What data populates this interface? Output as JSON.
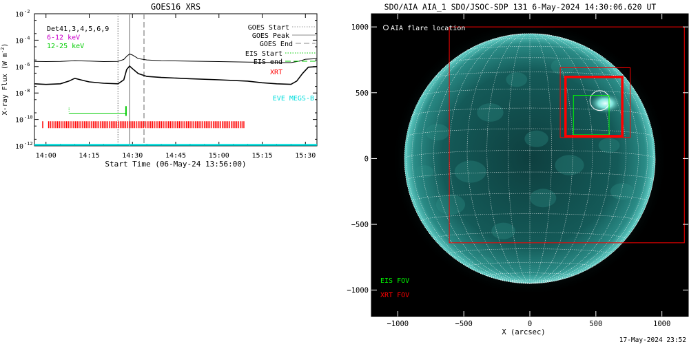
{
  "footer_timestamp": "17-May-2024 23:52",
  "chart_data": [
    {
      "type": "line",
      "title": "GOES16 XRS",
      "ylabel": "X-ray Flux (W m^-2)",
      "xlabel": "Start Time (06-May-24 13:56:00)",
      "y_scale": "log",
      "ylim": [
        1e-12,
        0.01
      ],
      "xlim": [
        "13:56",
        "15:34"
      ],
      "x_ticks": [
        "14:00",
        "14:15",
        "14:30",
        "14:45",
        "15:00",
        "15:15",
        "15:30"
      ],
      "y_ticks": [
        {
          "value": 1e-12,
          "label": "10",
          "exp": "-12"
        },
        {
          "value": 1e-10,
          "label": "10",
          "exp": "-10"
        },
        {
          "value": 1e-08,
          "label": "10",
          "exp": "-8"
        },
        {
          "value": 1e-06,
          "label": "10",
          "exp": "-6"
        },
        {
          "value": 0.0001,
          "label": "10",
          "exp": "-4"
        },
        {
          "value": 0.01,
          "label": "10",
          "exp": "-2"
        }
      ],
      "legend_left": [
        {
          "text": "Det41,3,4,5,6,9",
          "color": "#000000"
        },
        {
          "text": "6-12 keV",
          "color": "#cc00cc"
        },
        {
          "text": "12-25 keV",
          "color": "#00cc00"
        }
      ],
      "legend_right": [
        {
          "text": "GOES Start",
          "color": "#999999",
          "style": "dotted"
        },
        {
          "text": "GOES Peak",
          "color": "#888888",
          "style": "solid"
        },
        {
          "text": "GOES End",
          "color": "#888888",
          "style": "dashed"
        },
        {
          "text": "EIS Start",
          "color": "#00cc00",
          "style": "dotted"
        },
        {
          "text": "EIS end",
          "color": "#00cc00",
          "style": "dashed"
        },
        {
          "text": "XRT",
          "color": "#ff0000",
          "style": "none"
        },
        {
          "text": "EVE MEGS-B",
          "color": "#00dddd",
          "style": "none"
        }
      ],
      "event_lines": {
        "goes_start": "14:25",
        "goes_peak": "14:29",
        "goes_end": "14:34"
      },
      "series": [
        {
          "color": "#000000",
          "x": [
            "13:56",
            "14:00",
            "14:05",
            "14:10",
            "14:15",
            "14:20",
            "14:25",
            "14:27",
            "14:28",
            "14:29",
            "14:30",
            "14:32",
            "14:35",
            "14:40",
            "14:50",
            "15:00",
            "15:10",
            "15:20",
            "15:25",
            "15:28",
            "15:30",
            "15:34"
          ],
          "y": [
            2.5e-06,
            2.4e-06,
            2.5e-06,
            2.8e-06,
            2.6e-06,
            2.4e-06,
            2.5e-06,
            3.5e-06,
            6e-06,
            9e-06,
            7.5e-06,
            4e-06,
            3.2e-06,
            2.8e-06,
            2.6e-06,
            2.4e-06,
            2.2e-06,
            2e-06,
            2e-06,
            2.6e-06,
            3.6e-06,
            4e-06
          ]
        },
        {
          "color": "#000000",
          "x": [
            "13:56",
            "14:00",
            "14:05",
            "14:08",
            "14:10",
            "14:12",
            "14:15",
            "14:20",
            "14:25",
            "14:27",
            "14:28",
            "14:29",
            "14:30",
            "14:32",
            "14:35",
            "14:40",
            "14:50",
            "15:00",
            "15:10",
            "15:15",
            "15:20",
            "15:25",
            "15:27",
            "15:29",
            "15:31",
            "15:34"
          ],
          "y": [
            5e-08,
            4.5e-08,
            5e-08,
            8e-08,
            1.3e-07,
            1e-07,
            7e-08,
            5.5e-08,
            5e-08,
            1e-07,
            6e-07,
            1.1e-06,
            7e-07,
            3e-07,
            1.8e-07,
            1.5e-07,
            1.2e-07,
            1e-07,
            8e-08,
            6e-08,
            5e-08,
            4.5e-08,
            8e-08,
            3e-07,
            9e-07,
            1e-06
          ]
        }
      ],
      "eis_rasters": [
        {
          "x_start": "14:08",
          "x_end": "14:28",
          "y": 3e-10
        },
        {
          "x_start": "14:28",
          "x_end": "14:28",
          "y": 8e-10
        }
      ],
      "xrt_bar": {
        "x_start": "13:59",
        "x_end": "15:09",
        "y": 4e-11
      },
      "eve_level": 1e-12
    },
    {
      "type": "image",
      "title": "SDO/AIA AIA_1 SDO/JSOC-SDP 131  6-May-2024 14:30:06.620 UT",
      "xlabel": "X (arcsec)",
      "xlim": [
        -1200,
        1200
      ],
      "ylim": [
        -1200,
        1100
      ],
      "x_ticks": [
        -1000,
        -500,
        0,
        500,
        1000
      ],
      "y_ticks": [
        1000,
        500,
        0,
        -500,
        -1000
      ],
      "solar_radius_arcsec": 950,
      "flare_location": {
        "label": "AIA flare location",
        "x": 530,
        "y": 440,
        "r": 75
      },
      "eis_fov": {
        "label": "EIS FOV",
        "color": "#00ff00",
        "x0": 330,
        "x1": 600,
        "y0": 180,
        "y1": 480
      },
      "xrt_fov": {
        "label": "XRT FOV",
        "color": "#ff0000",
        "boxes": [
          {
            "x0": 270,
            "x1": 700,
            "y0": 170,
            "y1": 620
          },
          {
            "x0": 230,
            "x1": 760,
            "y0": 160,
            "y1": 690
          },
          {
            "x0": -610,
            "x1": 1170,
            "y0": -640,
            "y1": 1000
          }
        ]
      }
    }
  ]
}
